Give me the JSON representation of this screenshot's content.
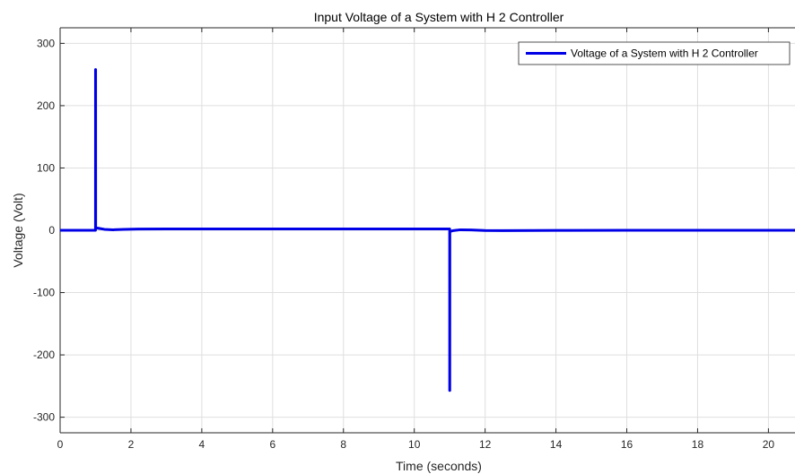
{
  "chart_data": {
    "type": "line",
    "title": "Input Voltage of a System with H 2 Controller",
    "xlabel": "Time (seconds)",
    "ylabel": "Voltage (Volt)",
    "xlim": [
      0,
      20.75
    ],
    "ylim": [
      -325,
      325
    ],
    "xticks": [
      0,
      2,
      4,
      6,
      8,
      10,
      12,
      14,
      16,
      18,
      20
    ],
    "xtick_labels": [
      "0",
      "2",
      "4",
      "6",
      "8",
      "10",
      "12",
      "14",
      "16",
      "18",
      "20"
    ],
    "yticks": [
      -300,
      -200,
      -100,
      0,
      100,
      200,
      300
    ],
    "ytick_labels": [
      "-300",
      "-200",
      "-100",
      "0",
      "100",
      "200",
      "300"
    ],
    "grid": true,
    "legend_position": "top-right",
    "series": [
      {
        "name": "Voltage of a System with H 2 Controller",
        "color": "#0000e6",
        "x": [
          0,
          0.999,
          1.0,
          1.002,
          1.004,
          1.1,
          1.25,
          1.5,
          1.8,
          2.2,
          3,
          5,
          8,
          10.5,
          10.99,
          10.999,
          11.0,
          11.002,
          11.004,
          11.1,
          11.3,
          11.6,
          12.0,
          12.5,
          14,
          16,
          18,
          20.75
        ],
        "y": [
          0,
          0,
          258,
          258,
          4,
          3,
          1.5,
          0.8,
          1.5,
          2,
          2.2,
          2.2,
          2.2,
          2.2,
          2.2,
          2.2,
          -257,
          -257,
          -2,
          -0.5,
          0.8,
          0.5,
          -0.3,
          -0.5,
          -0.2,
          0,
          0,
          0
        ]
      }
    ]
  }
}
